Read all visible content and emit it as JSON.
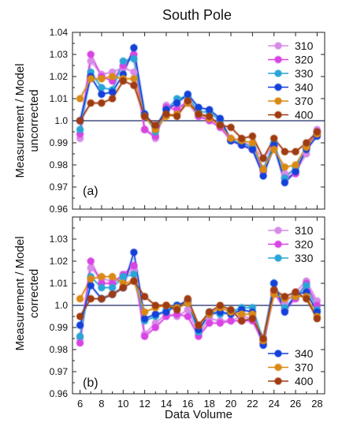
{
  "figure_title": "South Pole",
  "x_axis_label": "Data Volume",
  "colors": {
    "310": "#d78be8",
    "320": "#d944e3",
    "330": "#2aa6d6",
    "340": "#1441d9",
    "370": "#d98a15",
    "400": "#a03c12",
    "refline": "#1f2a63"
  },
  "chart_data": [
    {
      "type": "line",
      "panel_label": "(a)",
      "ylabel_line1": "Measurement / Model",
      "ylabel_line2": "uncorrected",
      "ylim": [
        0.96,
        1.04
      ],
      "yticks": [
        "0.96",
        "0.97",
        "0.98",
        "0.99",
        "1.0",
        "1.01",
        "1.02",
        "1.03",
        "1.04"
      ],
      "xticks": [
        "6",
        "8",
        "10",
        "12",
        "14",
        "16",
        "18",
        "20",
        "22",
        "24",
        "26",
        "28"
      ],
      "xlim": [
        5.3,
        28.7
      ],
      "reference_line": 1.0,
      "legend_position": "top-right",
      "x": [
        6,
        7,
        8,
        9,
        10,
        11,
        12,
        13,
        14,
        15,
        16,
        17,
        18,
        19,
        20,
        21,
        22,
        23,
        24,
        25,
        26,
        27,
        28
      ],
      "series": [
        {
          "name": "310",
          "values": [
            0.992,
            1.027,
            1.021,
            1.022,
            1.024,
            1.022,
            0.996,
            0.992,
            1.007,
            1.006,
            1.008,
            1.002,
            1.001,
            0.999,
            0.992,
            0.991,
            0.988,
            0.983,
            0.989,
            0.976,
            0.977,
            0.985,
            0.996
          ]
        },
        {
          "name": "320",
          "values": [
            0.994,
            1.03,
            1.02,
            1.018,
            1.025,
            1.03,
            0.996,
            0.993,
            1.006,
            1.005,
            1.009,
            1.002,
            1.0,
            0.997,
            0.991,
            0.989,
            0.987,
            0.977,
            0.988,
            0.974,
            0.976,
            0.988,
            0.995
          ]
        },
        {
          "name": "330",
          "values": [
            0.996,
            1.022,
            1.015,
            1.014,
            1.027,
            1.028,
            1.003,
            0.995,
            1.005,
            1.01,
            1.011,
            1.004,
            1.004,
            1.0,
            0.991,
            0.99,
            0.988,
            0.978,
            0.99,
            0.974,
            0.979,
            0.988,
            0.994
          ]
        },
        {
          "name": "340",
          "values": [
            1.0,
            1.02,
            1.012,
            1.013,
            1.021,
            1.033,
            1.003,
            0.997,
            1.005,
            1.008,
            1.012,
            1.006,
            1.005,
            1.001,
            0.991,
            0.989,
            0.987,
            0.975,
            0.989,
            0.972,
            0.977,
            0.987,
            0.993
          ]
        },
        {
          "name": "370",
          "values": [
            1.01,
            1.019,
            1.019,
            1.02,
            1.019,
            1.019,
            1.002,
            0.996,
            1.002,
            1.003,
            1.008,
            1.003,
            1.001,
            0.998,
            0.992,
            0.991,
            0.99,
            0.978,
            0.987,
            0.979,
            0.98,
            0.988,
            0.994
          ]
        },
        {
          "name": "400",
          "values": [
            1.0,
            1.008,
            1.008,
            1.01,
            1.018,
            1.016,
            1.002,
            0.998,
            1.003,
            1.002,
            1.009,
            1.003,
            1.002,
            0.998,
            0.997,
            0.992,
            0.993,
            0.983,
            0.992,
            0.986,
            0.986,
            0.99,
            0.995
          ]
        }
      ]
    },
    {
      "type": "line",
      "panel_label": "(b)",
      "ylabel_line1": "Measurement / Model",
      "ylabel_line2": "corrected",
      "ylim": [
        0.96,
        1.04
      ],
      "yticks": [
        "0.96",
        "0.97",
        "0.98",
        "0.99",
        "1.0",
        "1.01",
        "1.02",
        "1.03"
      ],
      "xticks": [
        "6",
        "8",
        "10",
        "12",
        "14",
        "16",
        "18",
        "20",
        "22",
        "24",
        "26",
        "28"
      ],
      "xlim": [
        5.3,
        28.7
      ],
      "reference_line": 1.0,
      "legend_position": "split: top-right and bottom-right",
      "x": [
        6,
        7,
        8,
        9,
        10,
        11,
        12,
        13,
        14,
        15,
        16,
        17,
        18,
        19,
        20,
        21,
        22,
        23,
        24,
        25,
        26,
        27,
        28
      ],
      "series": [
        {
          "name": "310",
          "values": [
            0.985,
            1.017,
            1.012,
            1.011,
            1.013,
            1.016,
            0.987,
            0.992,
            0.996,
            0.995,
            0.998,
            0.987,
            0.994,
            0.993,
            0.993,
            0.995,
            0.994,
            0.985,
            1.007,
            1.001,
            1.006,
            1.011,
            1.002
          ]
        },
        {
          "name": "320",
          "values": [
            0.983,
            1.02,
            1.01,
            1.01,
            1.014,
            1.018,
            0.986,
            0.99,
            0.995,
            0.996,
            0.995,
            0.986,
            0.992,
            0.992,
            0.993,
            0.993,
            0.993,
            0.983,
            1.006,
            0.998,
            1.003,
            1.01,
            1.0
          ]
        },
        {
          "name": "330",
          "values": [
            0.986,
            1.013,
            1.008,
            1.008,
            1.013,
            1.014,
            0.993,
            0.995,
            0.998,
            1.0,
            1.001,
            0.988,
            0.997,
            0.996,
            0.997,
            0.999,
            0.999,
            0.984,
            1.01,
            0.999,
            1.004,
            1.009,
            0.998
          ]
        },
        {
          "name": "340",
          "values": [
            0.991,
            1.009,
            1.003,
            1.005,
            1.008,
            1.024,
            0.994,
            0.996,
            0.997,
            1.0,
            1.002,
            0.989,
            0.996,
            0.997,
            0.996,
            0.998,
            0.997,
            0.982,
            1.01,
            0.997,
            1.005,
            1.006,
            0.997
          ]
        },
        {
          "name": "370",
          "values": [
            1.003,
            1.012,
            1.013,
            1.013,
            1.01,
            1.011,
            0.997,
            0.999,
            1.0,
            0.999,
            1.001,
            0.991,
            0.996,
            0.999,
            0.997,
            0.996,
            0.996,
            0.984,
            1.005,
            1.003,
            1.004,
            1.004,
            0.995
          ]
        },
        {
          "name": "400",
          "values": [
            0.995,
            1.003,
            1.003,
            1.005,
            1.008,
            1.011,
            1.004,
            1.0,
            1.0,
            0.998,
            1.003,
            0.991,
            0.997,
            1.0,
            0.998,
            0.993,
            0.994,
            0.985,
            1.007,
            1.004,
            1.006,
            1.003,
            0.994
          ]
        }
      ]
    }
  ],
  "legends": {
    "a": [
      {
        "name": "310"
      },
      {
        "name": "320"
      },
      {
        "name": "330"
      },
      {
        "name": "340"
      },
      {
        "name": "370"
      },
      {
        "name": "400"
      }
    ],
    "b_top": [
      {
        "name": "310"
      },
      {
        "name": "320"
      },
      {
        "name": "330"
      }
    ],
    "b_bottom": [
      {
        "name": "340"
      },
      {
        "name": "370"
      },
      {
        "name": "400"
      }
    ]
  }
}
